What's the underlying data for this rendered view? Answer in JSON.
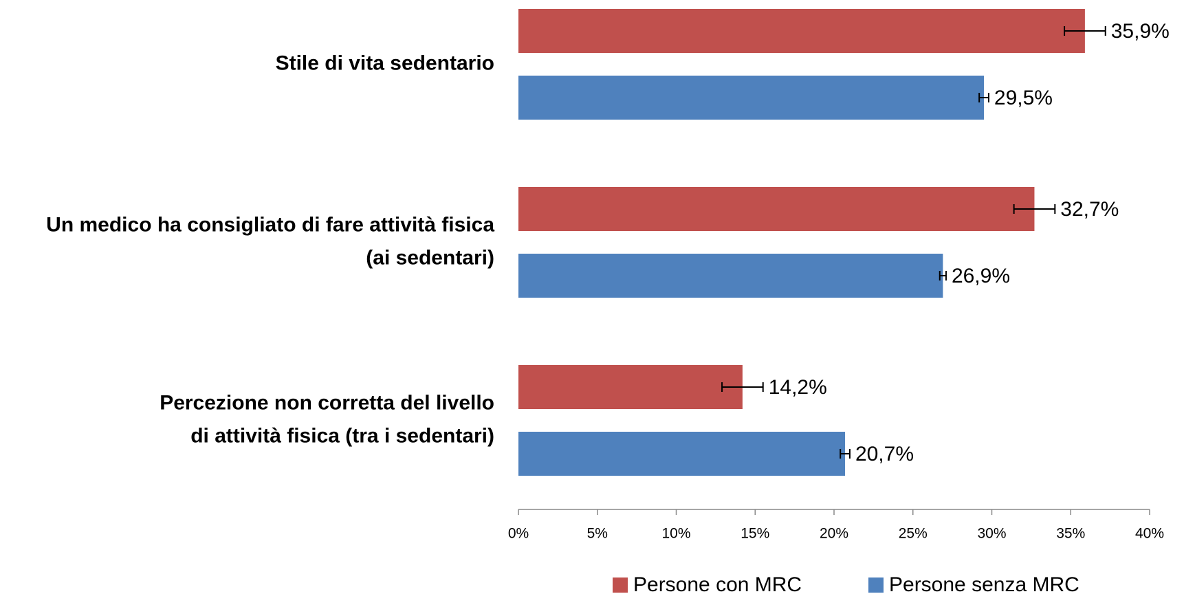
{
  "chart_data": {
    "type": "bar",
    "orientation": "horizontal",
    "categories": [
      [
        "Stile di vita sedentario"
      ],
      [
        "Un medico ha consigliato di fare attività fisica",
        "(ai sedentari)"
      ],
      [
        "Percezione non corretta del livello",
        "di attività fisica (tra i sedentari)"
      ]
    ],
    "series": [
      {
        "name": "Persone con MRC",
        "color": "#c0504d",
        "values": [
          35.9,
          32.7,
          14.2
        ],
        "value_labels": [
          "35,9%",
          "32,7%",
          "14,2%"
        ],
        "errors": [
          1.3,
          1.3,
          1.3
        ]
      },
      {
        "name": "Persone senza MRC",
        "color": "#4f81bd",
        "values": [
          29.5,
          26.9,
          20.7
        ],
        "value_labels": [
          "29,5%",
          "26,9%",
          "20,7%"
        ],
        "errors": [
          0.3,
          0.2,
          0.3
        ]
      }
    ],
    "xlim": [
      0,
      40
    ],
    "xticks": [
      {
        "value": 0,
        "label": "0%"
      },
      {
        "value": 5,
        "label": "5%"
      },
      {
        "value": 10,
        "label": "10%"
      },
      {
        "value": 15,
        "label": "15%"
      },
      {
        "value": 20,
        "label": "20%"
      },
      {
        "value": 25,
        "label": "25%"
      },
      {
        "value": 30,
        "label": "30%"
      },
      {
        "value": 35,
        "label": "35%"
      },
      {
        "value": 40,
        "label": "40%"
      }
    ],
    "legend": "bottom"
  }
}
